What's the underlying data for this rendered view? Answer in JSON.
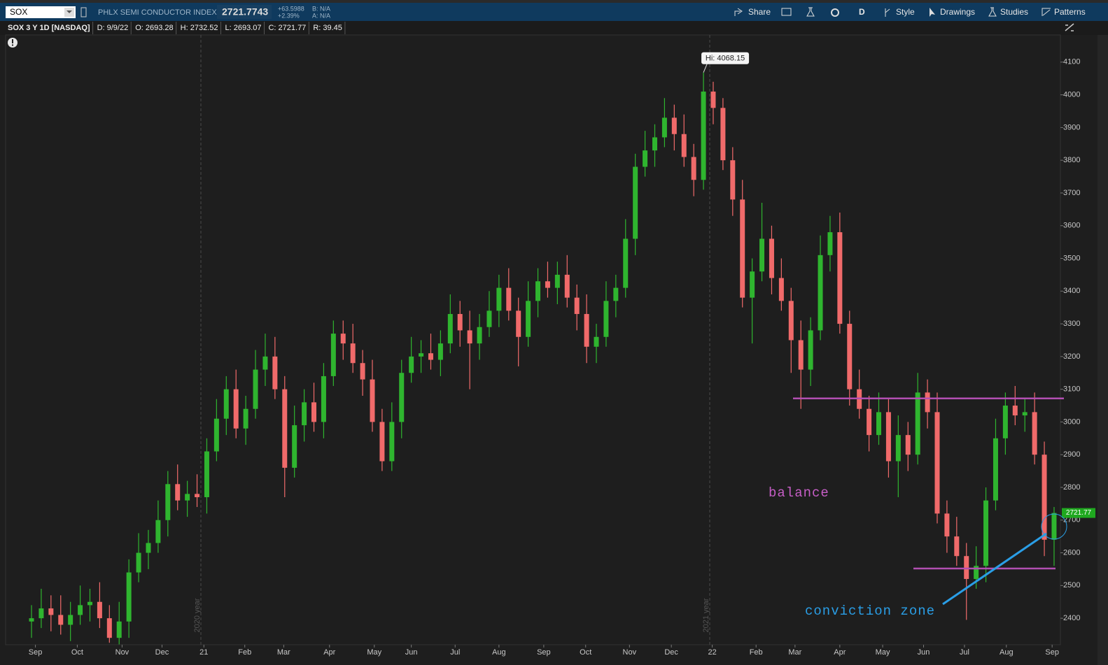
{
  "toolbar": {
    "symbol": "SOX",
    "description": "PHLX SEMI CONDUCTOR INDEX",
    "last": "2721.7743",
    "change": "+63.5988",
    "change_pct": "+2.39%",
    "bid": "B: N/A",
    "ask": "A: N/A",
    "buttons": [
      "Share",
      "D",
      "Style",
      "Drawings",
      "Studies",
      "Patterns"
    ]
  },
  "info_bar": [
    "SOX 3 Y 1D [NASDAQ]",
    "D: 9/9/22",
    "O: 2693.28",
    "H: 2732.52",
    "L: 2693.07",
    "C: 2721.77",
    "R: 39.45"
  ],
  "chart_data": {
    "type": "candlestick",
    "open": [
      2390,
      2400,
      2430,
      2410,
      2380,
      2410,
      2440,
      2450,
      2400,
      2340,
      2390,
      2540,
      2600,
      2630,
      2700,
      2810,
      2760,
      2780,
      2770,
      2910,
      3010,
      3100,
      2980,
      3040,
      3160,
      3200,
      3100,
      2860,
      2990,
      3060,
      3000,
      3140,
      3270,
      3240,
      3180,
      3130,
      3000,
      2880,
      3000,
      3150,
      3200,
      3210,
      3190,
      3240,
      3330,
      3280,
      3240,
      3290,
      3340,
      3410,
      3340,
      3260,
      3370,
      3430,
      3410,
      3450,
      3380,
      3330,
      3230,
      3260,
      3370,
      3410,
      3560,
      3780,
      3830,
      3870,
      3930,
      3880,
      3810,
      3740,
      4010,
      3960,
      3800,
      3680,
      3380,
      3460,
      3560,
      3440,
      3370,
      3250,
      3160,
      3280,
      3510,
      3580,
      3300,
      3100,
      3040,
      2960,
      3030,
      2880,
      2960,
      2900,
      3090,
      3030,
      2720,
      2650,
      2590,
      2520,
      2560,
      2760,
      2950,
      3050,
      3020,
      3030,
      2900,
      2640
    ],
    "high": [
      2440,
      2490,
      2470,
      2470,
      2450,
      2500,
      2490,
      2510,
      2440,
      2450,
      2580,
      2660,
      2670,
      2760,
      2850,
      2870,
      2820,
      2840,
      2950,
      3070,
      3140,
      3160,
      3080,
      3220,
      3270,
      3260,
      3140,
      3050,
      3100,
      3120,
      3180,
      3310,
      3310,
      3300,
      3220,
      3190,
      3040,
      3060,
      3190,
      3260,
      3250,
      3270,
      3280,
      3390,
      3370,
      3340,
      3330,
      3400,
      3450,
      3470,
      3380,
      3430,
      3470,
      3490,
      3490,
      3510,
      3420,
      3390,
      3300,
      3430,
      3450,
      3620,
      3820,
      3890,
      3910,
      3990,
      3970,
      3940,
      3850,
      4068.15,
      4040,
      3990,
      3840,
      3740,
      3500,
      3670,
      3600,
      3500,
      3410,
      3310,
      3320,
      3570,
      3630,
      3640,
      3340,
      3160,
      3080,
      3090,
      3070,
      3020,
      3000,
      3150,
      3130,
      3090,
      2760,
      2710,
      2630,
      2620,
      2800,
      3010,
      3090,
      3110,
      3070,
      3090,
      2940,
      2740
    ],
    "low": [
      2340,
      2370,
      2360,
      2350,
      2330,
      2380,
      2390,
      2370,
      2325,
      2320,
      2340,
      2510,
      2550,
      2600,
      2650,
      2730,
      2710,
      2740,
      2720,
      2880,
      2960,
      2950,
      2930,
      3010,
      3110,
      3070,
      2770,
      2830,
      2940,
      2970,
      2950,
      3110,
      3190,
      3150,
      3080,
      2970,
      2850,
      2850,
      2950,
      3120,
      3150,
      3160,
      3140,
      3210,
      3230,
      3100,
      3190,
      3260,
      3290,
      3310,
      3170,
      3230,
      3320,
      3380,
      3360,
      3350,
      3280,
      3180,
      3180,
      3230,
      3320,
      3380,
      3510,
      3750,
      3780,
      3840,
      3830,
      3780,
      3690,
      3710,
      3910,
      3770,
      3630,
      3350,
      3240,
      3430,
      3390,
      3340,
      3150,
      3040,
      3110,
      3250,
      3460,
      3270,
      3050,
      3010,
      2910,
      2930,
      2830,
      2770,
      2850,
      2870,
      2980,
      2690,
      2600,
      2560,
      2395,
      2490,
      2510,
      2730,
      2900,
      2990,
      2970,
      2870,
      2590,
      2560
    ],
    "close": [
      2400,
      2430,
      2410,
      2380,
      2410,
      2440,
      2450,
      2400,
      2340,
      2390,
      2540,
      2600,
      2630,
      2700,
      2810,
      2760,
      2780,
      2770,
      2910,
      3010,
      3100,
      2980,
      3040,
      3160,
      3200,
      3100,
      2860,
      2990,
      3060,
      3000,
      3140,
      3270,
      3240,
      3180,
      3130,
      3000,
      2880,
      3000,
      3150,
      3200,
      3210,
      3190,
      3240,
      3330,
      3280,
      3240,
      3290,
      3340,
      3410,
      3340,
      3260,
      3370,
      3430,
      3410,
      3450,
      3380,
      3330,
      3230,
      3260,
      3370,
      3410,
      3560,
      3780,
      3830,
      3870,
      3930,
      3880,
      3810,
      3740,
      4010,
      3960,
      3800,
      3680,
      3380,
      3460,
      3560,
      3440,
      3370,
      3250,
      3160,
      3280,
      3510,
      3580,
      3300,
      3100,
      3040,
      2960,
      3030,
      2880,
      2960,
      2900,
      3090,
      3030,
      2720,
      2650,
      2590,
      2520,
      2560,
      2760,
      2950,
      3050,
      3020,
      3030,
      2900,
      2640,
      2721.77
    ],
    "up_color": "#2fb52f",
    "down_color": "#f06a6a",
    "level_color": "#b24fb2",
    "badge_color": "#1fa81f",
    "xlim": [
      -2.66,
      105.65
    ],
    "xticks": [
      {
        "value": 0.4,
        "label": "Sep"
      },
      {
        "value": 4.7,
        "label": "Oct"
      },
      {
        "value": 9.3,
        "label": "Nov"
      },
      {
        "value": 13.4,
        "label": "Dec"
      },
      {
        "value": 17.7,
        "label": "21"
      },
      {
        "value": 21.9,
        "label": "Feb"
      },
      {
        "value": 25.9,
        "label": "Mar"
      },
      {
        "value": 30.6,
        "label": "Apr"
      },
      {
        "value": 35.2,
        "label": "May"
      },
      {
        "value": 39.0,
        "label": "Jun"
      },
      {
        "value": 43.5,
        "label": "Jul"
      },
      {
        "value": 48.0,
        "label": "Aug"
      },
      {
        "value": 52.6,
        "label": "Sep"
      },
      {
        "value": 56.9,
        "label": "Oct"
      },
      {
        "value": 61.4,
        "label": "Nov"
      },
      {
        "value": 65.7,
        "label": "Dec"
      },
      {
        "value": 69.9,
        "label": "22"
      },
      {
        "value": 74.4,
        "label": "Feb"
      },
      {
        "value": 78.4,
        "label": "Mar"
      },
      {
        "value": 83.0,
        "label": "Apr"
      },
      {
        "value": 87.4,
        "label": "May"
      },
      {
        "value": 91.6,
        "label": "Jun"
      },
      {
        "value": 95.8,
        "label": "Jul"
      },
      {
        "value": 100.1,
        "label": "Aug"
      },
      {
        "value": 104.8,
        "label": "Sep"
      }
    ],
    "ylim": [
      2319,
      4183
    ],
    "yticks": [
      2400,
      2500,
      2600,
      2700,
      2800,
      2900,
      3000,
      3100,
      3200,
      3300,
      3400,
      3500,
      3600,
      3700,
      3800,
      3900,
      4000,
      4100
    ],
    "hi_label": "Hi: 4068.15",
    "year_markers": [
      "2020 year",
      "2021 year"
    ],
    "levels": [
      3072,
      2552
    ],
    "annotations": [
      "balance",
      "conviction zone"
    ]
  }
}
